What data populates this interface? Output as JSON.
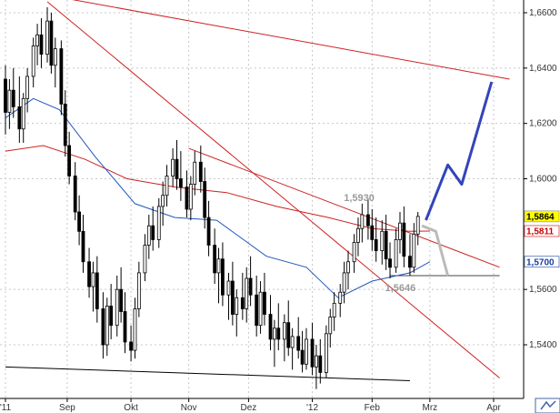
{
  "chart_data": {
    "type": "candlestick",
    "grid": true,
    "y_axis": {
      "min": 1.525,
      "max": 1.665,
      "ticks": [
        {
          "value": 1.66,
          "label": "1,6600"
        },
        {
          "value": 1.64,
          "label": "1,6400"
        },
        {
          "value": 1.62,
          "label": "1,6200"
        },
        {
          "value": 1.6,
          "label": "1,6000"
        },
        {
          "value": 1.56,
          "label": "1,5600"
        },
        {
          "value": 1.54,
          "label": "1,5400"
        }
      ]
    },
    "x_axis": {
      "ticks": [
        {
          "date": "2011-08-01",
          "label": "'11"
        },
        {
          "date": "2011-09-01",
          "label": "Sep"
        },
        {
          "date": "2011-10-03",
          "label": "Okt"
        },
        {
          "date": "2011-11-01",
          "label": "Nov"
        },
        {
          "date": "2011-12-01",
          "label": "Dez"
        },
        {
          "date": "2012-01-02",
          "label": "'12"
        },
        {
          "date": "2012-02-01",
          "label": "Feb"
        },
        {
          "date": "2012-03-01",
          "label": "Mrz"
        },
        {
          "date": "2012-04-02",
          "label": "Apr"
        }
      ]
    },
    "price_badges": [
      {
        "value": 1.5864,
        "label": "1,5864",
        "color": "#000000",
        "bg": "#ffff00"
      },
      {
        "value": 1.5811,
        "label": "1,5811",
        "color": "#cc0000",
        "bg": "#ffffff"
      },
      {
        "value": 1.57,
        "label": "1,5700",
        "color": "#1a3fa0",
        "bg": "#ffffff"
      }
    ],
    "annotations": [
      {
        "label": "1,5930",
        "value": 1.593
      },
      {
        "label": "1,5646",
        "value": 1.5646
      }
    ],
    "moving_averages": [
      {
        "color": "#cc2222",
        "points": [
          [
            "2011-08-01",
            1.61
          ],
          [
            "2011-08-20",
            1.612
          ],
          [
            "2011-09-10",
            1.607
          ],
          [
            "2011-10-01",
            1.6
          ],
          [
            "2011-10-25",
            1.597
          ],
          [
            "2011-11-20",
            1.595
          ],
          [
            "2011-12-15",
            1.59
          ],
          [
            "2012-01-10",
            1.586
          ],
          [
            "2012-02-01",
            1.582
          ],
          [
            "2012-02-20",
            1.581
          ],
          [
            "2012-03-01",
            1.5811
          ]
        ]
      },
      {
        "color": "#2255bb",
        "points": [
          [
            "2011-08-01",
            1.622
          ],
          [
            "2011-08-15",
            1.629
          ],
          [
            "2011-08-28",
            1.625
          ],
          [
            "2011-09-15",
            1.608
          ],
          [
            "2011-10-05",
            1.591
          ],
          [
            "2011-10-25",
            1.586
          ],
          [
            "2011-11-15",
            1.585
          ],
          [
            "2011-12-10",
            1.572
          ],
          [
            "2011-12-30",
            1.568
          ],
          [
            "2012-01-15",
            1.557
          ],
          [
            "2012-02-01",
            1.563
          ],
          [
            "2012-02-20",
            1.566
          ],
          [
            "2012-03-01",
            1.57
          ]
        ]
      }
    ],
    "trendlines": [
      {
        "color": "#cc2222",
        "points": [
          [
            "2011-08-25",
            1.666
          ],
          [
            "2012-04-10",
            1.636
          ]
        ]
      },
      {
        "color": "#cc2222",
        "points": [
          [
            "2011-08-22",
            1.664
          ],
          [
            "2012-04-05",
            1.528
          ]
        ]
      },
      {
        "color": "#cc2222",
        "points": [
          [
            "2011-11-01",
            1.611
          ],
          [
            "2012-04-05",
            1.568
          ]
        ]
      },
      {
        "color": "#000000",
        "points": [
          [
            "2011-08-01",
            1.532
          ],
          [
            "2012-02-20",
            1.527
          ]
        ]
      },
      {
        "color": "#444444",
        "points": [
          [
            "2012-02-10",
            1.565
          ],
          [
            "2012-04-05",
            1.565
          ]
        ]
      }
    ],
    "forecast_paths": [
      {
        "color": "#3344bb",
        "points": [
          [
            "2012-02-28",
            1.585
          ],
          [
            "2012-03-10",
            1.605
          ],
          [
            "2012-03-17",
            1.598
          ],
          [
            "2012-04-01",
            1.635
          ]
        ]
      },
      {
        "color": "#bbbbbb",
        "points": [
          [
            "2012-02-26",
            1.583
          ],
          [
            "2012-03-04",
            1.581
          ],
          [
            "2012-03-10",
            1.565
          ]
        ]
      }
    ],
    "ohlc": [
      [
        "2011-08-01",
        1.636,
        1.641,
        1.616,
        1.624
      ],
      [
        "2011-08-03",
        1.624,
        1.636,
        1.618,
        1.632
      ],
      [
        "2011-08-05",
        1.632,
        1.64,
        1.622,
        1.626
      ],
      [
        "2011-08-08",
        1.626,
        1.637,
        1.613,
        1.618
      ],
      [
        "2011-08-10",
        1.618,
        1.631,
        1.613,
        1.629
      ],
      [
        "2011-08-12",
        1.629,
        1.64,
        1.624,
        1.637
      ],
      [
        "2011-08-15",
        1.637,
        1.651,
        1.633,
        1.648
      ],
      [
        "2011-08-17",
        1.648,
        1.656,
        1.641,
        1.652
      ],
      [
        "2011-08-19",
        1.652,
        1.658,
        1.64,
        1.645
      ],
      [
        "2011-08-22",
        1.645,
        1.662,
        1.642,
        1.657
      ],
      [
        "2011-08-24",
        1.657,
        1.66,
        1.638,
        1.641
      ],
      [
        "2011-08-26",
        1.641,
        1.651,
        1.633,
        1.647
      ],
      [
        "2011-08-29",
        1.647,
        1.65,
        1.623,
        1.627
      ],
      [
        "2011-08-31",
        1.627,
        1.632,
        1.608,
        1.612
      ],
      [
        "2011-09-02",
        1.612,
        1.617,
        1.598,
        1.601
      ],
      [
        "2011-09-05",
        1.601,
        1.606,
        1.585,
        1.588
      ],
      [
        "2011-09-07",
        1.588,
        1.594,
        1.576,
        1.581
      ],
      [
        "2011-09-09",
        1.581,
        1.587,
        1.566,
        1.57
      ],
      [
        "2011-09-12",
        1.57,
        1.575,
        1.557,
        1.561
      ],
      [
        "2011-09-14",
        1.561,
        1.57,
        1.552,
        1.566
      ],
      [
        "2011-09-16",
        1.566,
        1.572,
        1.548,
        1.553
      ],
      [
        "2011-09-19",
        1.553,
        1.559,
        1.535,
        1.54
      ],
      [
        "2011-09-21",
        1.54,
        1.557,
        1.536,
        1.554
      ],
      [
        "2011-09-23",
        1.554,
        1.562,
        1.542,
        1.547
      ],
      [
        "2011-09-26",
        1.547,
        1.565,
        1.543,
        1.56
      ],
      [
        "2011-09-28",
        1.56,
        1.568,
        1.548,
        1.552
      ],
      [
        "2011-09-30",
        1.552,
        1.559,
        1.537,
        1.541
      ],
      [
        "2011-10-03",
        1.541,
        1.547,
        1.534,
        1.538
      ],
      [
        "2011-10-05",
        1.538,
        1.557,
        1.535,
        1.553
      ],
      [
        "2011-10-07",
        1.553,
        1.57,
        1.55,
        1.566
      ],
      [
        "2011-10-10",
        1.566,
        1.58,
        1.563,
        1.576
      ],
      [
        "2011-10-12",
        1.576,
        1.587,
        1.571,
        1.583
      ],
      [
        "2011-10-14",
        1.583,
        1.59,
        1.574,
        1.578
      ],
      [
        "2011-10-17",
        1.578,
        1.593,
        1.575,
        1.59
      ],
      [
        "2011-10-19",
        1.59,
        1.599,
        1.583,
        1.594
      ],
      [
        "2011-10-21",
        1.594,
        1.605,
        1.59,
        1.601
      ],
      [
        "2011-10-24",
        1.601,
        1.611,
        1.597,
        1.607
      ],
      [
        "2011-10-26",
        1.607,
        1.614,
        1.596,
        1.6
      ],
      [
        "2011-10-28",
        1.6,
        1.61,
        1.592,
        1.597
      ],
      [
        "2011-10-31",
        1.597,
        1.603,
        1.586,
        1.589
      ],
      [
        "2011-11-02",
        1.589,
        1.601,
        1.585,
        1.598
      ],
      [
        "2011-11-04",
        1.598,
        1.61,
        1.594,
        1.606
      ],
      [
        "2011-11-07",
        1.606,
        1.612,
        1.595,
        1.599
      ],
      [
        "2011-11-09",
        1.599,
        1.604,
        1.582,
        1.586
      ],
      [
        "2011-11-11",
        1.586,
        1.592,
        1.572,
        1.576
      ],
      [
        "2011-11-14",
        1.576,
        1.582,
        1.562,
        1.566
      ],
      [
        "2011-11-16",
        1.566,
        1.575,
        1.555,
        1.571
      ],
      [
        "2011-11-18",
        1.571,
        1.577,
        1.554,
        1.558
      ],
      [
        "2011-11-21",
        1.558,
        1.566,
        1.549,
        1.563
      ],
      [
        "2011-11-23",
        1.563,
        1.57,
        1.547,
        1.551
      ],
      [
        "2011-11-25",
        1.551,
        1.56,
        1.543,
        1.557
      ],
      [
        "2011-11-28",
        1.557,
        1.566,
        1.549,
        1.553
      ],
      [
        "2011-11-30",
        1.553,
        1.568,
        1.548,
        1.564
      ],
      [
        "2011-12-02",
        1.564,
        1.572,
        1.554,
        1.558
      ],
      [
        "2011-12-05",
        1.558,
        1.565,
        1.543,
        1.547
      ],
      [
        "2011-12-07",
        1.547,
        1.563,
        1.544,
        1.559
      ],
      [
        "2011-12-09",
        1.559,
        1.566,
        1.547,
        1.551
      ],
      [
        "2011-12-12",
        1.551,
        1.558,
        1.538,
        1.542
      ],
      [
        "2011-12-14",
        1.542,
        1.549,
        1.532,
        1.546
      ],
      [
        "2011-12-16",
        1.546,
        1.555,
        1.538,
        1.542
      ],
      [
        "2011-12-19",
        1.542,
        1.551,
        1.534,
        1.548
      ],
      [
        "2011-12-21",
        1.548,
        1.556,
        1.536,
        1.539
      ],
      [
        "2011-12-23",
        1.539,
        1.546,
        1.531,
        1.543
      ],
      [
        "2011-12-26",
        1.543,
        1.55,
        1.535,
        1.538
      ],
      [
        "2011-12-28",
        1.538,
        1.545,
        1.53,
        1.533
      ],
      [
        "2011-12-30",
        1.533,
        1.546,
        1.531,
        1.542
      ],
      [
        "2012-01-02",
        1.542,
        1.548,
        1.529,
        1.532
      ],
      [
        "2012-01-04",
        1.532,
        1.54,
        1.524,
        1.536
      ],
      [
        "2012-01-06",
        1.536,
        1.542,
        1.526,
        1.53
      ],
      [
        "2012-01-09",
        1.53,
        1.547,
        1.528,
        1.544
      ],
      [
        "2012-01-11",
        1.544,
        1.553,
        1.539,
        1.55
      ],
      [
        "2012-01-13",
        1.55,
        1.559,
        1.545,
        1.555
      ],
      [
        "2012-01-16",
        1.555,
        1.562,
        1.55,
        1.559
      ],
      [
        "2012-01-18",
        1.559,
        1.57,
        1.555,
        1.566
      ],
      [
        "2012-01-20",
        1.566,
        1.574,
        1.56,
        1.57
      ],
      [
        "2012-01-23",
        1.57,
        1.58,
        1.566,
        1.577
      ],
      [
        "2012-01-25",
        1.577,
        1.586,
        1.572,
        1.582
      ],
      [
        "2012-01-27",
        1.582,
        1.591,
        1.577,
        1.587
      ],
      [
        "2012-01-30",
        1.587,
        1.593,
        1.578,
        1.583
      ],
      [
        "2012-02-01",
        1.583,
        1.589,
        1.574,
        1.578
      ],
      [
        "2012-02-03",
        1.578,
        1.586,
        1.57,
        1.574
      ],
      [
        "2012-02-06",
        1.574,
        1.585,
        1.569,
        1.581
      ],
      [
        "2012-02-08",
        1.581,
        1.587,
        1.567,
        1.571
      ],
      [
        "2012-02-10",
        1.571,
        1.577,
        1.564,
        1.568
      ],
      [
        "2012-02-13",
        1.568,
        1.582,
        1.566,
        1.578
      ],
      [
        "2012-02-15",
        1.578,
        1.588,
        1.573,
        1.584
      ],
      [
        "2012-02-17",
        1.584,
        1.59,
        1.568,
        1.572
      ],
      [
        "2012-02-20",
        1.572,
        1.58,
        1.565,
        1.568
      ],
      [
        "2012-02-22",
        1.568,
        1.584,
        1.566,
        1.58
      ],
      [
        "2012-02-24",
        1.58,
        1.588,
        1.576,
        1.5864
      ]
    ]
  }
}
